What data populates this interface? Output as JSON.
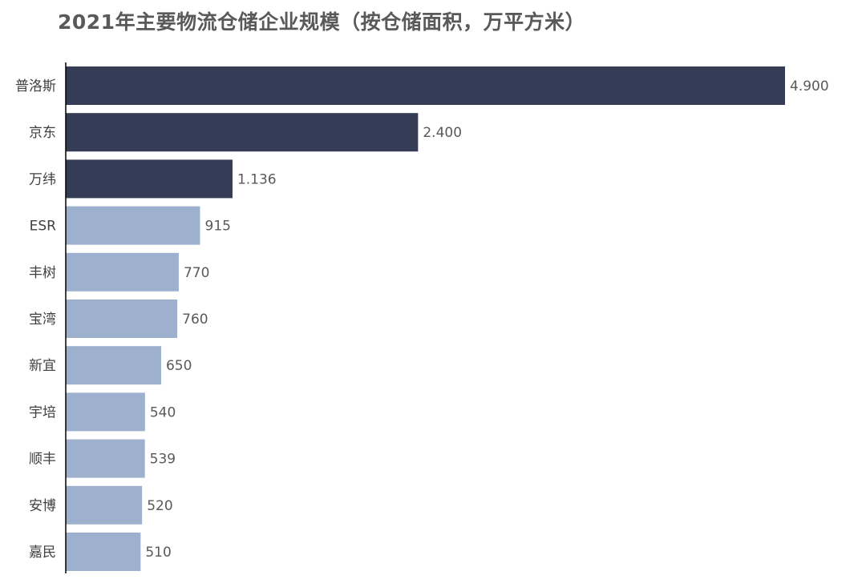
{
  "chart_data": {
    "type": "bar",
    "orientation": "horizontal",
    "title": "2021年主要物流仓储企业规模（按仓储面积，万平方米）",
    "categories": [
      "普洛斯",
      "京东",
      "万纬",
      "ESR",
      "丰树",
      "宝湾",
      "新宜",
      "宇培",
      "顺丰",
      "安博",
      "嘉民"
    ],
    "values": [
      4900,
      2400,
      1136,
      915,
      770,
      760,
      650,
      540,
      539,
      520,
      510
    ],
    "value_labels": [
      "4.900",
      "2.400",
      "1.136",
      "915",
      "770",
      "760",
      "650",
      "540",
      "539",
      "520",
      "510"
    ],
    "xlabel": "",
    "ylabel": "",
    "xlim": [
      0,
      4900
    ],
    "grid": false,
    "legend": "none",
    "highlight_count": 3,
    "colors": {
      "highlight": "#343d55",
      "normal": "#9db0cd",
      "axis": "#000000",
      "title": "#595959"
    }
  }
}
